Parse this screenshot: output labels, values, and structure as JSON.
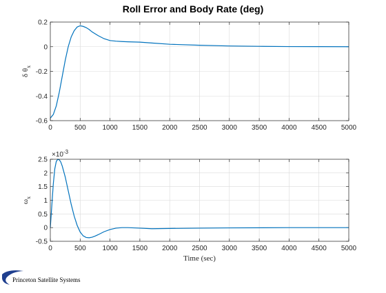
{
  "figure": {
    "title": "Roll Error and Body Rate (deg)",
    "footer": "Princeton Satellite Systems"
  },
  "chart_data": [
    {
      "type": "line",
      "title": "Roll Error and Body Rate (deg)",
      "xlabel": "",
      "ylabel": "δ θ",
      "ylabel_sub": "x",
      "xlim": [
        0,
        5000
      ],
      "ylim": [
        -0.6,
        0.2
      ],
      "xticks": [
        0,
        500,
        1000,
        1500,
        2000,
        2500,
        3000,
        3500,
        4000,
        4500,
        5000
      ],
      "yticks": [
        -0.6,
        -0.4,
        -0.2,
        0,
        0.2
      ],
      "ytick_labels": [
        "-0.6",
        "-0.4",
        "-0.2",
        "0",
        "0.2"
      ],
      "grid": true,
      "color": "#0072BD",
      "series": [
        {
          "x": [
            0,
            50,
            100,
            150,
            200,
            250,
            300,
            350,
            400,
            450,
            500,
            550,
            600,
            650,
            700,
            800,
            900,
            1000,
            1100,
            1200,
            1300,
            1500,
            1700,
            2000,
            2500,
            3000,
            3500,
            4000,
            4500,
            5000
          ],
          "values": [
            -0.58,
            -0.55,
            -0.48,
            -0.37,
            -0.24,
            -0.11,
            0.0,
            0.08,
            0.13,
            0.16,
            0.17,
            0.165,
            0.155,
            0.14,
            0.12,
            0.09,
            0.065,
            0.05,
            0.045,
            0.042,
            0.04,
            0.037,
            0.03,
            0.02,
            0.012,
            0.006,
            0.003,
            0.001,
            0.0005,
            0.0
          ]
        }
      ]
    },
    {
      "type": "line",
      "xlabel": "Time (sec)",
      "ylabel": "ω",
      "ylabel_sub": "x",
      "exponent_label": "×10",
      "exponent": "-3",
      "xlim": [
        0,
        5000
      ],
      "ylim": [
        -0.5,
        2.5
      ],
      "xticks": [
        0,
        500,
        1000,
        1500,
        2000,
        2500,
        3000,
        3500,
        4000,
        4500,
        5000
      ],
      "yticks": [
        -0.5,
        0,
        0.5,
        1,
        1.5,
        2,
        2.5
      ],
      "ytick_labels": [
        "-0.5",
        "0",
        "0.5",
        "1",
        "1.5",
        "2",
        "2.5"
      ],
      "grid": true,
      "color": "#0072BD",
      "series": [
        {
          "x": [
            0,
            25,
            50,
            75,
            100,
            125,
            150,
            175,
            200,
            250,
            300,
            350,
            400,
            450,
            500,
            550,
            600,
            650,
            700,
            750,
            800,
            900,
            1000,
            1100,
            1200,
            1300,
            1500,
            1700,
            2000,
            2500,
            3000,
            4000,
            5000
          ],
          "values": [
            0.0,
            0.8,
            1.6,
            2.15,
            2.42,
            2.5,
            2.48,
            2.4,
            2.25,
            1.85,
            1.35,
            0.85,
            0.42,
            0.08,
            -0.16,
            -0.3,
            -0.36,
            -0.37,
            -0.35,
            -0.31,
            -0.26,
            -0.15,
            -0.07,
            -0.02,
            0.0,
            0.0,
            -0.02,
            -0.04,
            -0.03,
            -0.02,
            -0.01,
            0.0,
            0.0
          ]
        }
      ]
    }
  ]
}
